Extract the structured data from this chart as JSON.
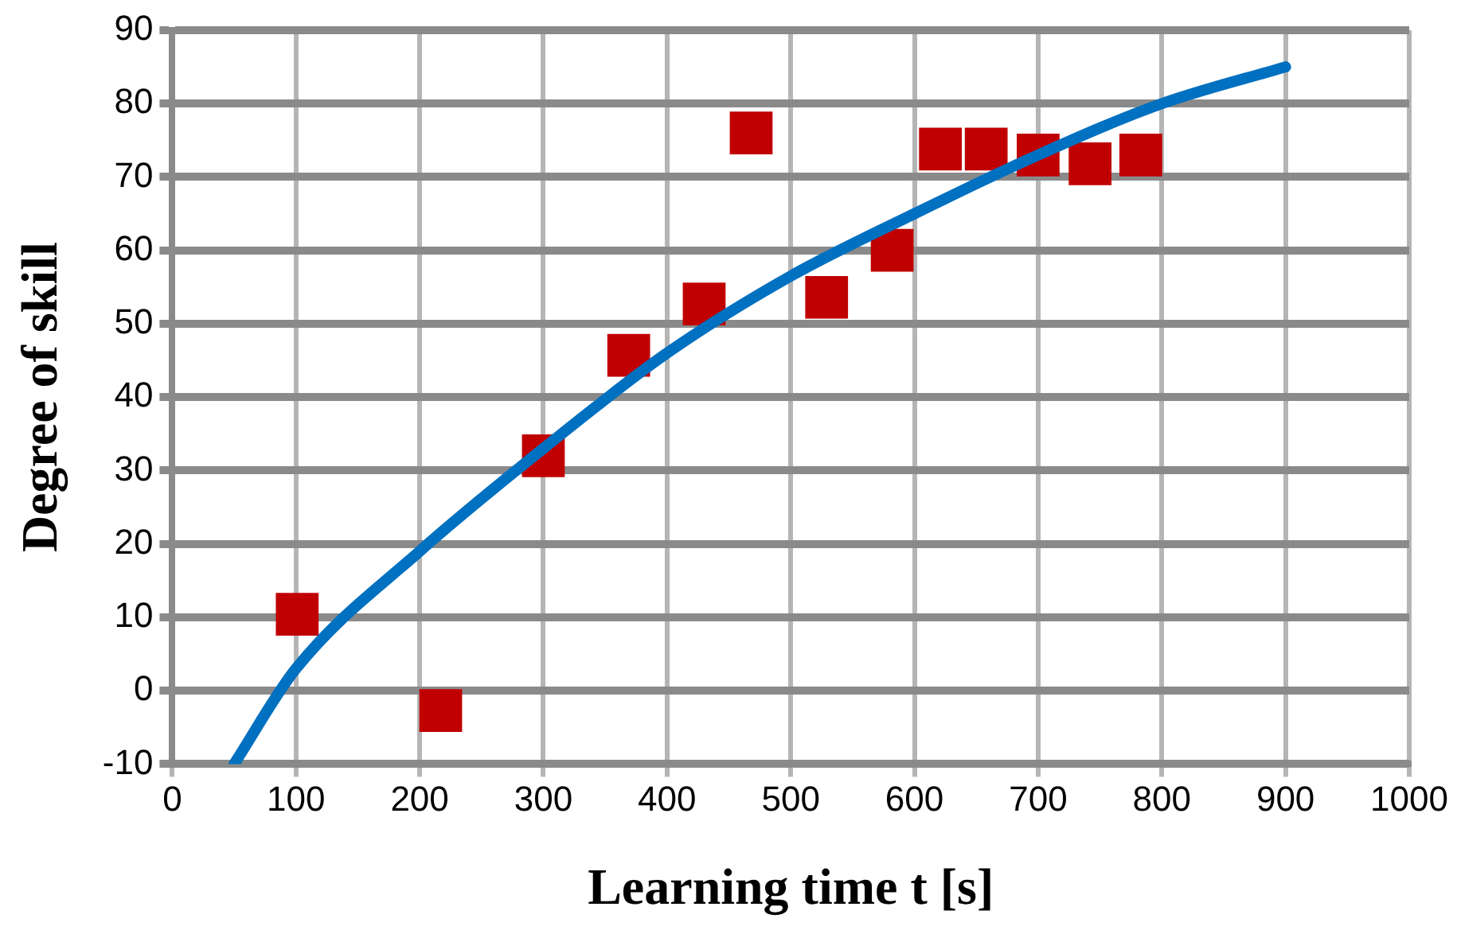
{
  "chart_data": {
    "type": "scatter",
    "xlabel": "Learning time t [s]",
    "ylabel": "Degree of skill",
    "xlim": [
      0,
      1000
    ],
    "xticks": [
      0,
      100,
      200,
      300,
      400,
      500,
      600,
      700,
      800,
      900,
      1000
    ],
    "ylim": [
      -10,
      90
    ],
    "yticks": [
      -10,
      0,
      10,
      20,
      30,
      40,
      50,
      60,
      70,
      80,
      90
    ],
    "grid": true,
    "marker": "square",
    "series": [
      {
        "type": "scatter",
        "color": "#c00000",
        "x": [
          101,
          217,
          300,
          369,
          430,
          468,
          529,
          582,
          621,
          658,
          700,
          742,
          783
        ],
        "values": [
          10.4,
          -2.7,
          32,
          45.7,
          52.7,
          76,
          53.6,
          60,
          73.8,
          73.8,
          73,
          71.8,
          73
        ]
      },
      {
        "type": "line",
        "color": "#0070c0",
        "marker": "none",
        "x": [
          50,
          100,
          200,
          300,
          400,
          500,
          600,
          700,
          800,
          900
        ],
        "values": [
          -10,
          3,
          19,
          33,
          46,
          56.5,
          65,
          73,
          80,
          85
        ]
      }
    ]
  }
}
